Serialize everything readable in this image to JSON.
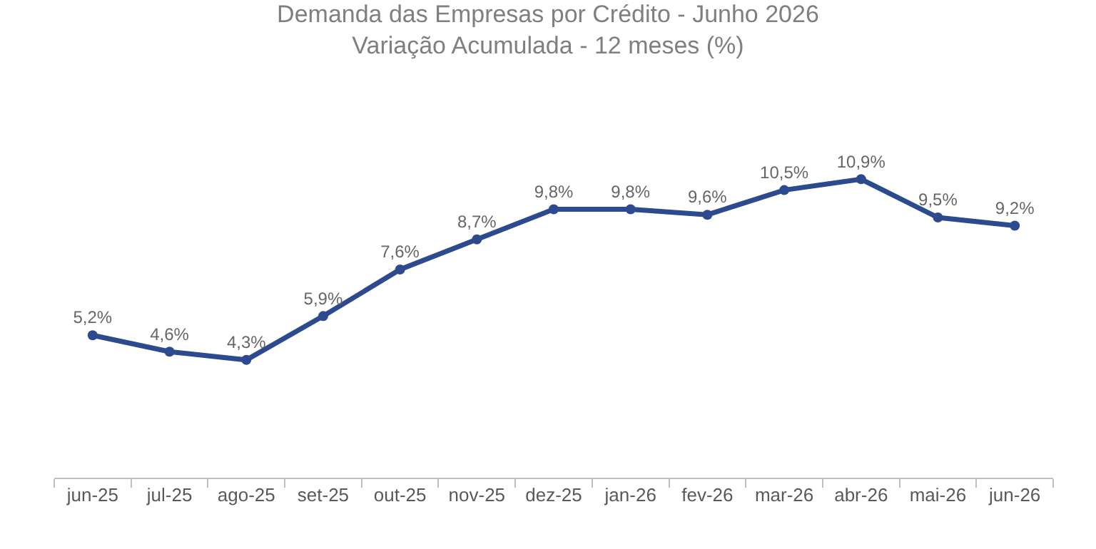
{
  "chart_data": {
    "type": "line",
    "title": "Demanda das Empresas por Crédito - Junho 2026",
    "subtitle": "Variação Acumulada - 12 meses (%)",
    "categories": [
      "jun-25",
      "jul-25",
      "ago-25",
      "set-25",
      "out-25",
      "nov-25",
      "dez-25",
      "jan-26",
      "fev-26",
      "mar-26",
      "abr-26",
      "mai-26",
      "jun-26"
    ],
    "series": [
      {
        "color": "#2e4a8f",
        "values": [
          5.2,
          4.6,
          4.3,
          5.9,
          7.6,
          8.7,
          9.8,
          9.8,
          9.6,
          10.5,
          10.9,
          9.5,
          9.2
        ],
        "value_labels": [
          "5,2%",
          "4,6%",
          "4,3%",
          "5,9%",
          "7,6%",
          "8,7%",
          "9,8%",
          "9,8%",
          "9,6%",
          "10,5%",
          "10,9%",
          "9,5%",
          "9,2%"
        ]
      }
    ],
    "tick_labels": "x",
    "legend": false,
    "marker": "circle",
    "line_style": "solid"
  }
}
